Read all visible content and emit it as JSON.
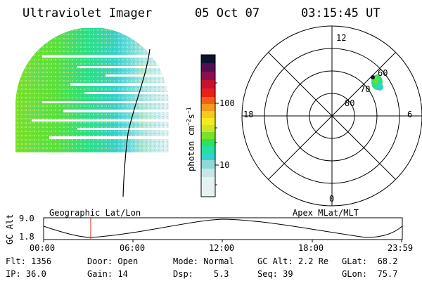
{
  "header": {
    "instrument": "Ultraviolet Imager",
    "date": "05 Oct 07",
    "time": "03:15:45 UT"
  },
  "colorbar": {
    "unit_label": "photon cm",
    "unit_sup1": "−2",
    "unit_mid": "s",
    "unit_sup2": "−1",
    "ticks": [
      "100",
      "10"
    ],
    "colors": [
      "#e6f2f2",
      "#c8e6e6",
      "#8fd8d8",
      "#33d2cc",
      "#22e0a0",
      "#2ee05a",
      "#7ae02a",
      "#c8e62a",
      "#f5ea20",
      "#f7c81e",
      "#f59a1a",
      "#f06018",
      "#e82018",
      "#c81030",
      "#8a1050",
      "#501050",
      "#101030"
    ]
  },
  "polar": {
    "lat_labels": [
      "60",
      "70",
      "80"
    ],
    "mlt_labels": {
      "top": "12",
      "left": "18",
      "right": "6",
      "bottom": "0"
    }
  },
  "timeline": {
    "ylabel": "GC Alt",
    "yticks": [
      "9.0",
      "1.8"
    ],
    "left_title": "Geographic Lat/Lon",
    "right_title": "Apex MLat/MLT",
    "xticks": [
      "00:00",
      "06:00",
      "12:00",
      "18:00",
      "23:59"
    ],
    "marker_color": "#cc2222"
  },
  "info": {
    "row1": [
      {
        "key": "Flt:",
        "value": "1356"
      },
      {
        "key": "Door:",
        "value": "Open"
      },
      {
        "key": "Mode:",
        "value": "Normal"
      },
      {
        "key": "GC Alt:",
        "value": "2.2 Re"
      },
      {
        "key": "GLat:",
        "value": "68.2"
      }
    ],
    "row2": [
      {
        "key": "IP:",
        "value": "36.0"
      },
      {
        "key": "Gain:",
        "value": "14"
      },
      {
        "key": "Dsp:",
        "value": "5.3"
      },
      {
        "key": "Seq:",
        "value": "39"
      },
      {
        "key": "GLon:",
        "value": "75.7"
      }
    ]
  }
}
